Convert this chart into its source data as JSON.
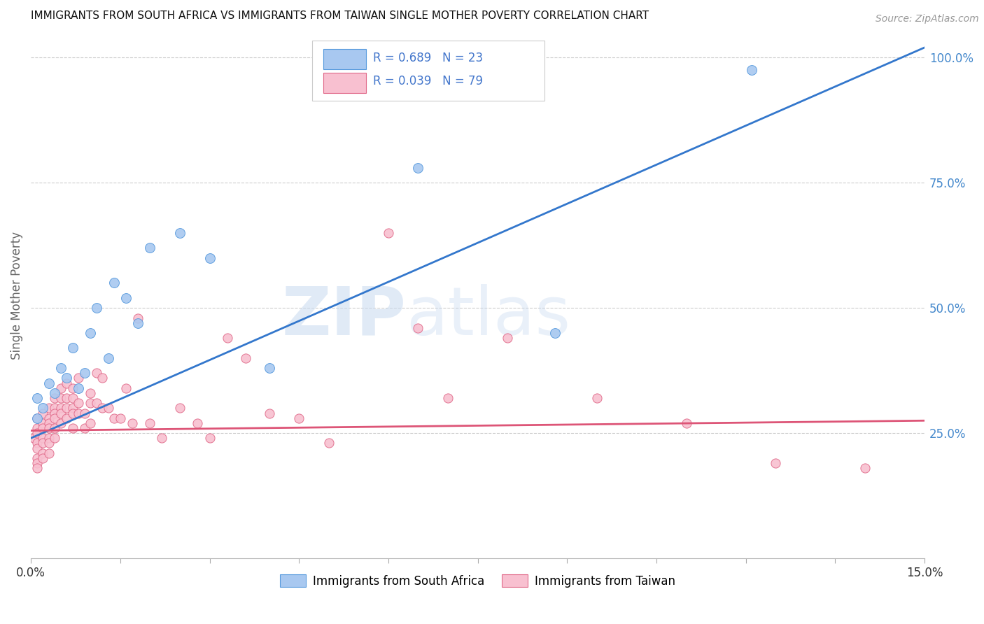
{
  "title": "IMMIGRANTS FROM SOUTH AFRICA VS IMMIGRANTS FROM TAIWAN SINGLE MOTHER POVERTY CORRELATION CHART",
  "source": "Source: ZipAtlas.com",
  "ylabel": "Single Mother Poverty",
  "right_yticks": [
    0.25,
    0.5,
    0.75,
    1.0
  ],
  "right_yticklabels": [
    "25.0%",
    "50.0%",
    "75.0%",
    "100.0%"
  ],
  "watermark": "ZIPatlas",
  "south_africa": {
    "color": "#a8c8f0",
    "edge_color": "#5599dd",
    "line_color": "#3377cc",
    "x": [
      0.001,
      0.001,
      0.002,
      0.003,
      0.004,
      0.005,
      0.006,
      0.007,
      0.008,
      0.009,
      0.01,
      0.011,
      0.013,
      0.014,
      0.016,
      0.018,
      0.02,
      0.025,
      0.03,
      0.04,
      0.065,
      0.088,
      0.121
    ],
    "y": [
      0.28,
      0.32,
      0.3,
      0.35,
      0.33,
      0.38,
      0.36,
      0.42,
      0.34,
      0.37,
      0.45,
      0.5,
      0.4,
      0.55,
      0.52,
      0.47,
      0.62,
      0.65,
      0.6,
      0.38,
      0.78,
      0.45,
      0.975
    ]
  },
  "taiwan": {
    "color": "#f8c0d0",
    "edge_color": "#e06888",
    "line_color": "#dd5577",
    "x": [
      0.0005,
      0.001,
      0.001,
      0.001,
      0.001,
      0.001,
      0.001,
      0.001,
      0.001,
      0.002,
      0.002,
      0.002,
      0.002,
      0.002,
      0.002,
      0.002,
      0.003,
      0.003,
      0.003,
      0.003,
      0.003,
      0.003,
      0.003,
      0.004,
      0.004,
      0.004,
      0.004,
      0.004,
      0.004,
      0.005,
      0.005,
      0.005,
      0.005,
      0.005,
      0.006,
      0.006,
      0.006,
      0.006,
      0.007,
      0.007,
      0.007,
      0.007,
      0.007,
      0.008,
      0.008,
      0.008,
      0.009,
      0.009,
      0.01,
      0.01,
      0.01,
      0.011,
      0.011,
      0.012,
      0.012,
      0.013,
      0.014,
      0.015,
      0.016,
      0.017,
      0.018,
      0.02,
      0.022,
      0.025,
      0.028,
      0.03,
      0.033,
      0.036,
      0.04,
      0.045,
      0.05,
      0.06,
      0.065,
      0.07,
      0.08,
      0.095,
      0.11,
      0.125,
      0.14
    ],
    "y": [
      0.24,
      0.28,
      0.26,
      0.25,
      0.23,
      0.22,
      0.2,
      0.19,
      0.18,
      0.29,
      0.27,
      0.26,
      0.24,
      0.23,
      0.21,
      0.2,
      0.3,
      0.28,
      0.27,
      0.26,
      0.24,
      0.23,
      0.21,
      0.32,
      0.3,
      0.29,
      0.28,
      0.26,
      0.24,
      0.34,
      0.32,
      0.3,
      0.29,
      0.27,
      0.35,
      0.32,
      0.3,
      0.28,
      0.34,
      0.32,
      0.3,
      0.29,
      0.26,
      0.36,
      0.31,
      0.29,
      0.29,
      0.26,
      0.33,
      0.31,
      0.27,
      0.37,
      0.31,
      0.36,
      0.3,
      0.3,
      0.28,
      0.28,
      0.34,
      0.27,
      0.48,
      0.27,
      0.24,
      0.3,
      0.27,
      0.24,
      0.44,
      0.4,
      0.29,
      0.28,
      0.23,
      0.65,
      0.46,
      0.32,
      0.44,
      0.32,
      0.27,
      0.19,
      0.18
    ]
  },
  "sa_line": {
    "x0": 0.0,
    "y0": 0.24,
    "x1": 0.15,
    "y1": 1.02
  },
  "tw_line": {
    "x0": 0.0,
    "y0": 0.255,
    "x1": 0.15,
    "y1": 0.275
  },
  "xlim": [
    0.0,
    0.15
  ],
  "ylim": [
    0.0,
    1.05
  ],
  "xtick_positions": [
    0.0,
    0.015,
    0.03,
    0.045,
    0.06,
    0.075,
    0.09,
    0.105,
    0.12,
    0.135,
    0.15
  ],
  "background_color": "#ffffff",
  "grid_color": "#cccccc",
  "grid_linestyle": "--"
}
